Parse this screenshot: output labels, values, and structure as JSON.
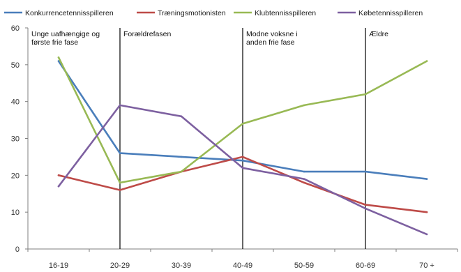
{
  "chart_data": {
    "type": "line",
    "title": "",
    "xlabel": "",
    "ylabel": "",
    "ylim": [
      0,
      60
    ],
    "yticks": [
      "0",
      "10",
      "20",
      "30",
      "40",
      "50",
      "60"
    ],
    "categories": [
      "16-19",
      "20-29",
      "30-39",
      "40-49",
      "50-59",
      "60-69",
      "70 +"
    ],
    "grid": false,
    "legend_position": "top",
    "series": [
      {
        "name": "Konkurrencetennisspilleren",
        "color": "#4a7ebb",
        "values": [
          51,
          26,
          25,
          24,
          21,
          21,
          19
        ]
      },
      {
        "name": "Træningsmotionisten",
        "color": "#be4b48",
        "values": [
          20,
          16,
          21,
          25,
          18,
          12,
          10
        ]
      },
      {
        "name": "Klubtennisspilleren",
        "color": "#98b954",
        "values": [
          52,
          18,
          21,
          34,
          39,
          42,
          51
        ]
      },
      {
        "name": "Købetennisspilleren",
        "color": "#7d60a0",
        "values": [
          17,
          39,
          36,
          22,
          19,
          11,
          4
        ]
      }
    ],
    "phases": [
      {
        "label_lines": [
          "Unge uafhængige og",
          "første frie fase"
        ],
        "start_category": "16-19"
      },
      {
        "label_lines": [
          "Forældrefasen"
        ],
        "start_category": "20-29"
      },
      {
        "label_lines": [
          "Modne voksne i",
          "anden frie fase"
        ],
        "start_category": "40-49"
      },
      {
        "label_lines": [
          "Ældre"
        ],
        "start_category": "60-69"
      }
    ]
  }
}
